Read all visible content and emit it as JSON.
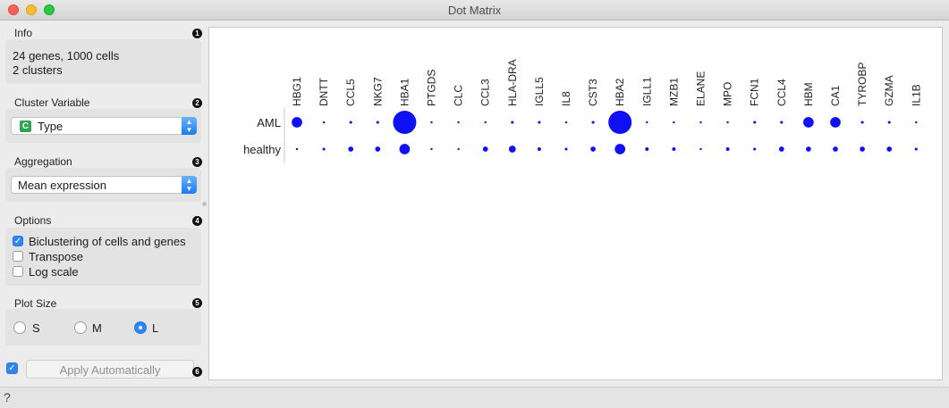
{
  "window": {
    "title": "Dot Matrix"
  },
  "sidebar": {
    "info": {
      "title": "Info",
      "badge": "1",
      "line1": "24 genes, 1000 cells",
      "line2": "2 clusters"
    },
    "cluster_variable": {
      "title": "Cluster Variable",
      "badge": "2",
      "type_badge": "C",
      "value": "Type"
    },
    "aggregation": {
      "title": "Aggregation",
      "badge": "3",
      "value": "Mean expression"
    },
    "options": {
      "title": "Options",
      "badge": "4",
      "biclustering": {
        "label": "Biclustering of cells and genes",
        "checked": true
      },
      "transpose": {
        "label": "Transpose",
        "checked": false
      },
      "log_scale": {
        "label": "Log scale",
        "checked": false
      }
    },
    "plot_size": {
      "title": "Plot Size",
      "badge": "5",
      "options": [
        "S",
        "M",
        "L"
      ],
      "selected": "L"
    },
    "apply": {
      "label": "Apply Automatically",
      "checked": true,
      "badge": "6"
    }
  },
  "chart_data": {
    "type": "dot-matrix",
    "genes": [
      "HBG1",
      "DNTT",
      "CCL5",
      "NKG7",
      "HBA1",
      "PTGDS",
      "CLC",
      "CCL3",
      "HLA-DRA",
      "IGLL5",
      "IL8",
      "CST3",
      "HBA2",
      "IGLL1",
      "MZB1",
      "ELANE",
      "MPO",
      "FCN1",
      "CCL4",
      "HBM",
      "CA1",
      "TYROBP",
      "GZMA",
      "IL1B"
    ],
    "clusters": [
      "AML",
      "healthy"
    ],
    "values": [
      [
        0.45,
        0.05,
        0.12,
        0.12,
        1.0,
        0.05,
        0.05,
        0.05,
        0.12,
        0.12,
        0.05,
        0.12,
        1.0,
        0.05,
        0.05,
        0.05,
        0.05,
        0.12,
        0.12,
        0.45,
        0.45,
        0.12,
        0.12,
        0.05
      ],
      [
        0.05,
        0.12,
        0.22,
        0.22,
        0.45,
        0.05,
        0.05,
        0.22,
        0.3,
        0.15,
        0.12,
        0.22,
        0.45,
        0.15,
        0.15,
        0.05,
        0.15,
        0.12,
        0.22,
        0.22,
        0.22,
        0.22,
        0.22,
        0.12
      ]
    ],
    "dot_color": "#1010f5"
  },
  "colors": {
    "accent": "#2c86f6",
    "dot": "#1010f5"
  },
  "icons": {
    "help": "question-icon"
  },
  "status": {
    "help_glyph": "?"
  }
}
